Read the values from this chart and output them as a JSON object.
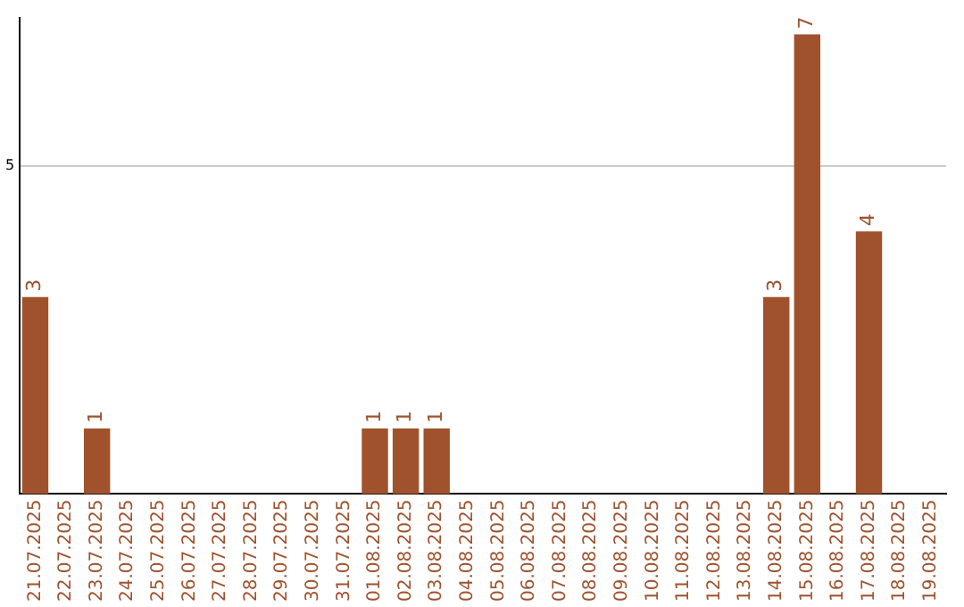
{
  "chart_data": {
    "type": "bar",
    "categories": [
      "21.07.2025",
      "22.07.2025",
      "23.07.2025",
      "24.07.2025",
      "25.07.2025",
      "26.07.2025",
      "27.07.2025",
      "28.07.2025",
      "29.07.2025",
      "30.07.2025",
      "31.07.2025",
      "01.08.2025",
      "02.08.2025",
      "03.08.2025",
      "04.08.2025",
      "05.08.2025",
      "06.08.2025",
      "07.08.2025",
      "08.08.2025",
      "09.08.2025",
      "10.08.2025",
      "11.08.2025",
      "12.08.2025",
      "13.08.2025",
      "14.08.2025",
      "15.08.2025",
      "16.08.2025",
      "17.08.2025",
      "18.08.2025",
      "19.08.2025"
    ],
    "values": [
      3,
      null,
      1,
      null,
      null,
      null,
      null,
      null,
      null,
      null,
      null,
      1,
      1,
      1,
      null,
      null,
      null,
      null,
      null,
      null,
      null,
      null,
      null,
      null,
      3,
      7,
      null,
      4,
      null,
      null
    ],
    "color": "#a0522d",
    "ylim": [
      0,
      7.25
    ],
    "yticks": [
      5
    ],
    "grid": "y",
    "legend": false,
    "data_labels": true
  }
}
